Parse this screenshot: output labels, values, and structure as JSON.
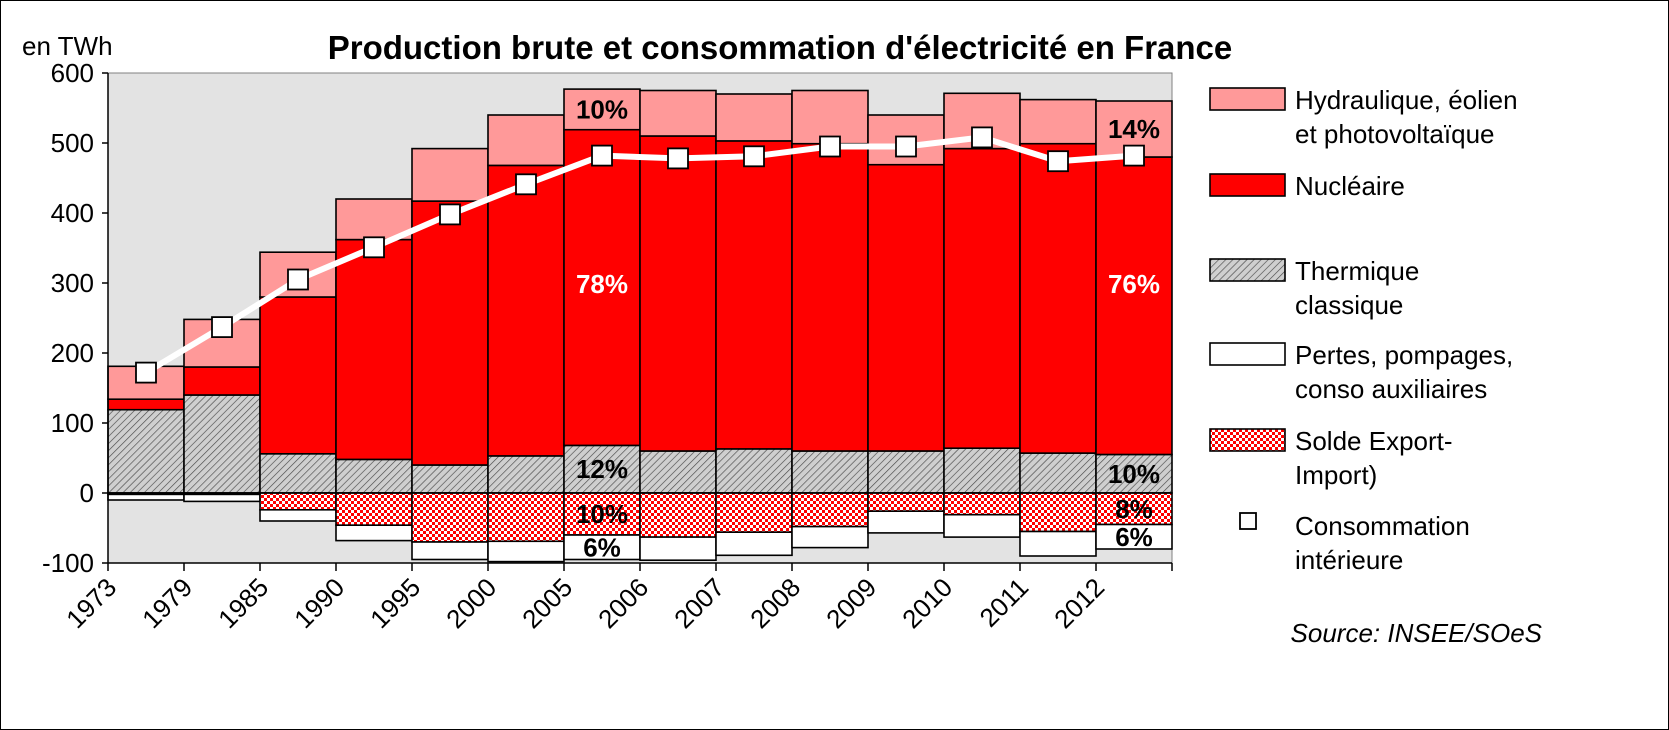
{
  "chart_data": {
    "type": "bar",
    "title": "Production brute et consommation d'électricité en France",
    "unit_label": "en TWh",
    "source": "Source: INSEE/SOeS",
    "ylim": [
      -100,
      600
    ],
    "yticks": [
      600,
      500,
      400,
      300,
      200,
      100,
      0,
      -100
    ],
    "grid": false,
    "legend_position": "right",
    "categories": [
      "1973",
      "1979",
      "1985",
      "1990",
      "1995",
      "2000",
      "2005",
      "2006",
      "2007",
      "2008",
      "2009",
      "2010",
      "2011",
      "2012"
    ],
    "series": [
      {
        "name": "Thermique classique",
        "stack": "positive",
        "values": [
          119,
          140,
          56,
          48,
          40,
          53,
          68,
          60,
          63,
          60,
          60,
          64,
          57,
          55
        ]
      },
      {
        "name": "Nucléaire",
        "stack": "positive",
        "values": [
          15,
          40,
          224,
          314,
          377,
          415,
          451,
          450,
          440,
          439,
          409,
          428,
          442,
          425
        ]
      },
      {
        "name": "Hydraulique, éolien et photovoltaïque",
        "stack": "positive",
        "values": [
          47,
          68,
          64,
          58,
          75,
          72,
          58,
          65,
          67,
          76,
          71,
          79,
          63,
          80
        ]
      },
      {
        "name": "Solde Export-Import)",
        "stack": "negative",
        "values": [
          -2,
          -2,
          -24,
          -46,
          -70,
          -69,
          -60,
          -63,
          -56,
          -48,
          -26,
          -31,
          -55,
          -45
        ]
      },
      {
        "name": "Pertes, pompages, conso auxiliaires",
        "stack": "negative",
        "values": [
          -8,
          -10,
          -16,
          -22,
          -25,
          -29,
          -35,
          -33,
          -33,
          -30,
          -31,
          -32,
          -35,
          -35
        ]
      },
      {
        "name": "Consommation intérieure",
        "type": "line",
        "values": [
          172,
          237,
          305,
          351,
          398,
          441,
          482,
          478,
          481,
          495,
          495,
          508,
          474,
          482
        ]
      }
    ],
    "annotations": [
      {
        "category": "2005",
        "series": "Hydraulique, éolien et photovoltaïque",
        "text": "10%",
        "color": "#000000"
      },
      {
        "category": "2005",
        "series": "Nucléaire",
        "text": "78%",
        "color": "#ffffff"
      },
      {
        "category": "2005",
        "series": "Thermique classique",
        "text": "12%",
        "color": "#000000"
      },
      {
        "category": "2005",
        "series": "Solde Export-Import)",
        "text": "10%",
        "color": "#000000"
      },
      {
        "category": "2005",
        "series": "Pertes, pompages, conso auxiliaires",
        "text": "6%",
        "color": "#000000"
      },
      {
        "category": "2012",
        "series": "Hydraulique, éolien et photovoltaïque",
        "text": "14%",
        "color": "#000000"
      },
      {
        "category": "2012",
        "series": "Nucléaire",
        "text": "76%",
        "color": "#ffffff"
      },
      {
        "category": "2012",
        "series": "Thermique classique",
        "text": "10%",
        "color": "#000000"
      },
      {
        "category": "2012",
        "series": "Solde Export-Import)",
        "text": "8%",
        "color": "#000000"
      },
      {
        "category": "2012",
        "series": "Pertes, pompages, conso auxiliaires",
        "text": "6%",
        "color": "#000000"
      }
    ],
    "legend": [
      {
        "key": "hydro",
        "lines": [
          "Hydraulique, éolien",
          "et photovoltaïque"
        ]
      },
      {
        "key": "nuclear",
        "lines": [
          "Nucléaire"
        ]
      },
      {
        "key": "thermal",
        "lines": [
          "Thermique",
          "classique"
        ]
      },
      {
        "key": "losses",
        "lines": [
          "Pertes, pompages,",
          "conso auxiliaires"
        ]
      },
      {
        "key": "export",
        "lines": [
          "Solde Export-",
          "Import)"
        ]
      },
      {
        "key": "consumption",
        "lines": [
          "Consommation",
          "intérieure"
        ]
      }
    ],
    "colors": {
      "plot_background": "#e3e3e3",
      "hydro": "#ff9999",
      "nuclear": "#ff0000",
      "thermal": "#c8c8c8",
      "losses": "#ffffff",
      "export": "#ff0000",
      "consumption_line": "#ffffff"
    }
  }
}
